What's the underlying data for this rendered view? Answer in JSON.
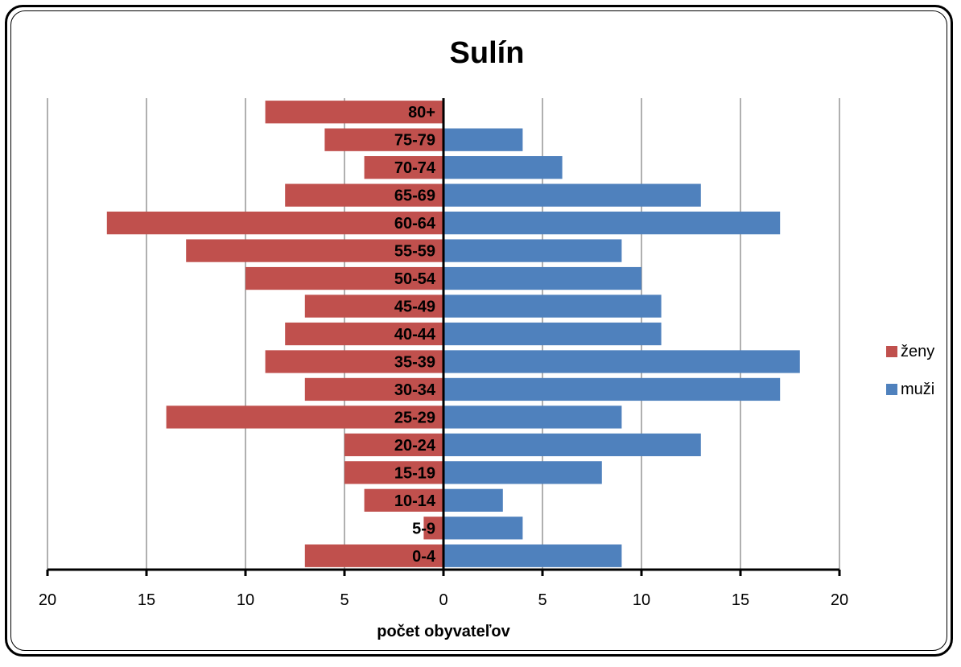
{
  "chart_data": {
    "type": "bar",
    "orientation": "horizontal",
    "title": "Sulín",
    "xlabel": "počet obyvateľov",
    "ylabel": "",
    "categories": [
      "0-4",
      "5-9",
      "10-14",
      "15-19",
      "20-24",
      "25-29",
      "30-34",
      "35-39",
      "40-44",
      "45-49",
      "50-54",
      "55-59",
      "60-64",
      "65-69",
      "70-74",
      "75-79",
      "80+"
    ],
    "series": [
      {
        "name": "ženy",
        "color": "#c0504d",
        "direction": "left",
        "values": [
          7,
          1,
          4,
          5,
          5,
          14,
          7,
          9,
          8,
          7,
          10,
          13,
          17,
          8,
          4,
          6,
          9
        ]
      },
      {
        "name": "muži",
        "color": "#4f81bd",
        "direction": "right",
        "values": [
          9,
          4,
          3,
          8,
          13,
          9,
          17,
          18,
          11,
          11,
          10,
          9,
          17,
          13,
          6,
          4,
          0
        ]
      }
    ],
    "xlim": [
      -20,
      20
    ],
    "xticks": [
      -20,
      -15,
      -10,
      -5,
      0,
      5,
      10,
      15,
      20
    ],
    "xtick_labels": [
      "20",
      "15",
      "10",
      "5",
      "0",
      "5",
      "10",
      "15",
      "20"
    ],
    "grid": true,
    "legend_position": "right"
  }
}
